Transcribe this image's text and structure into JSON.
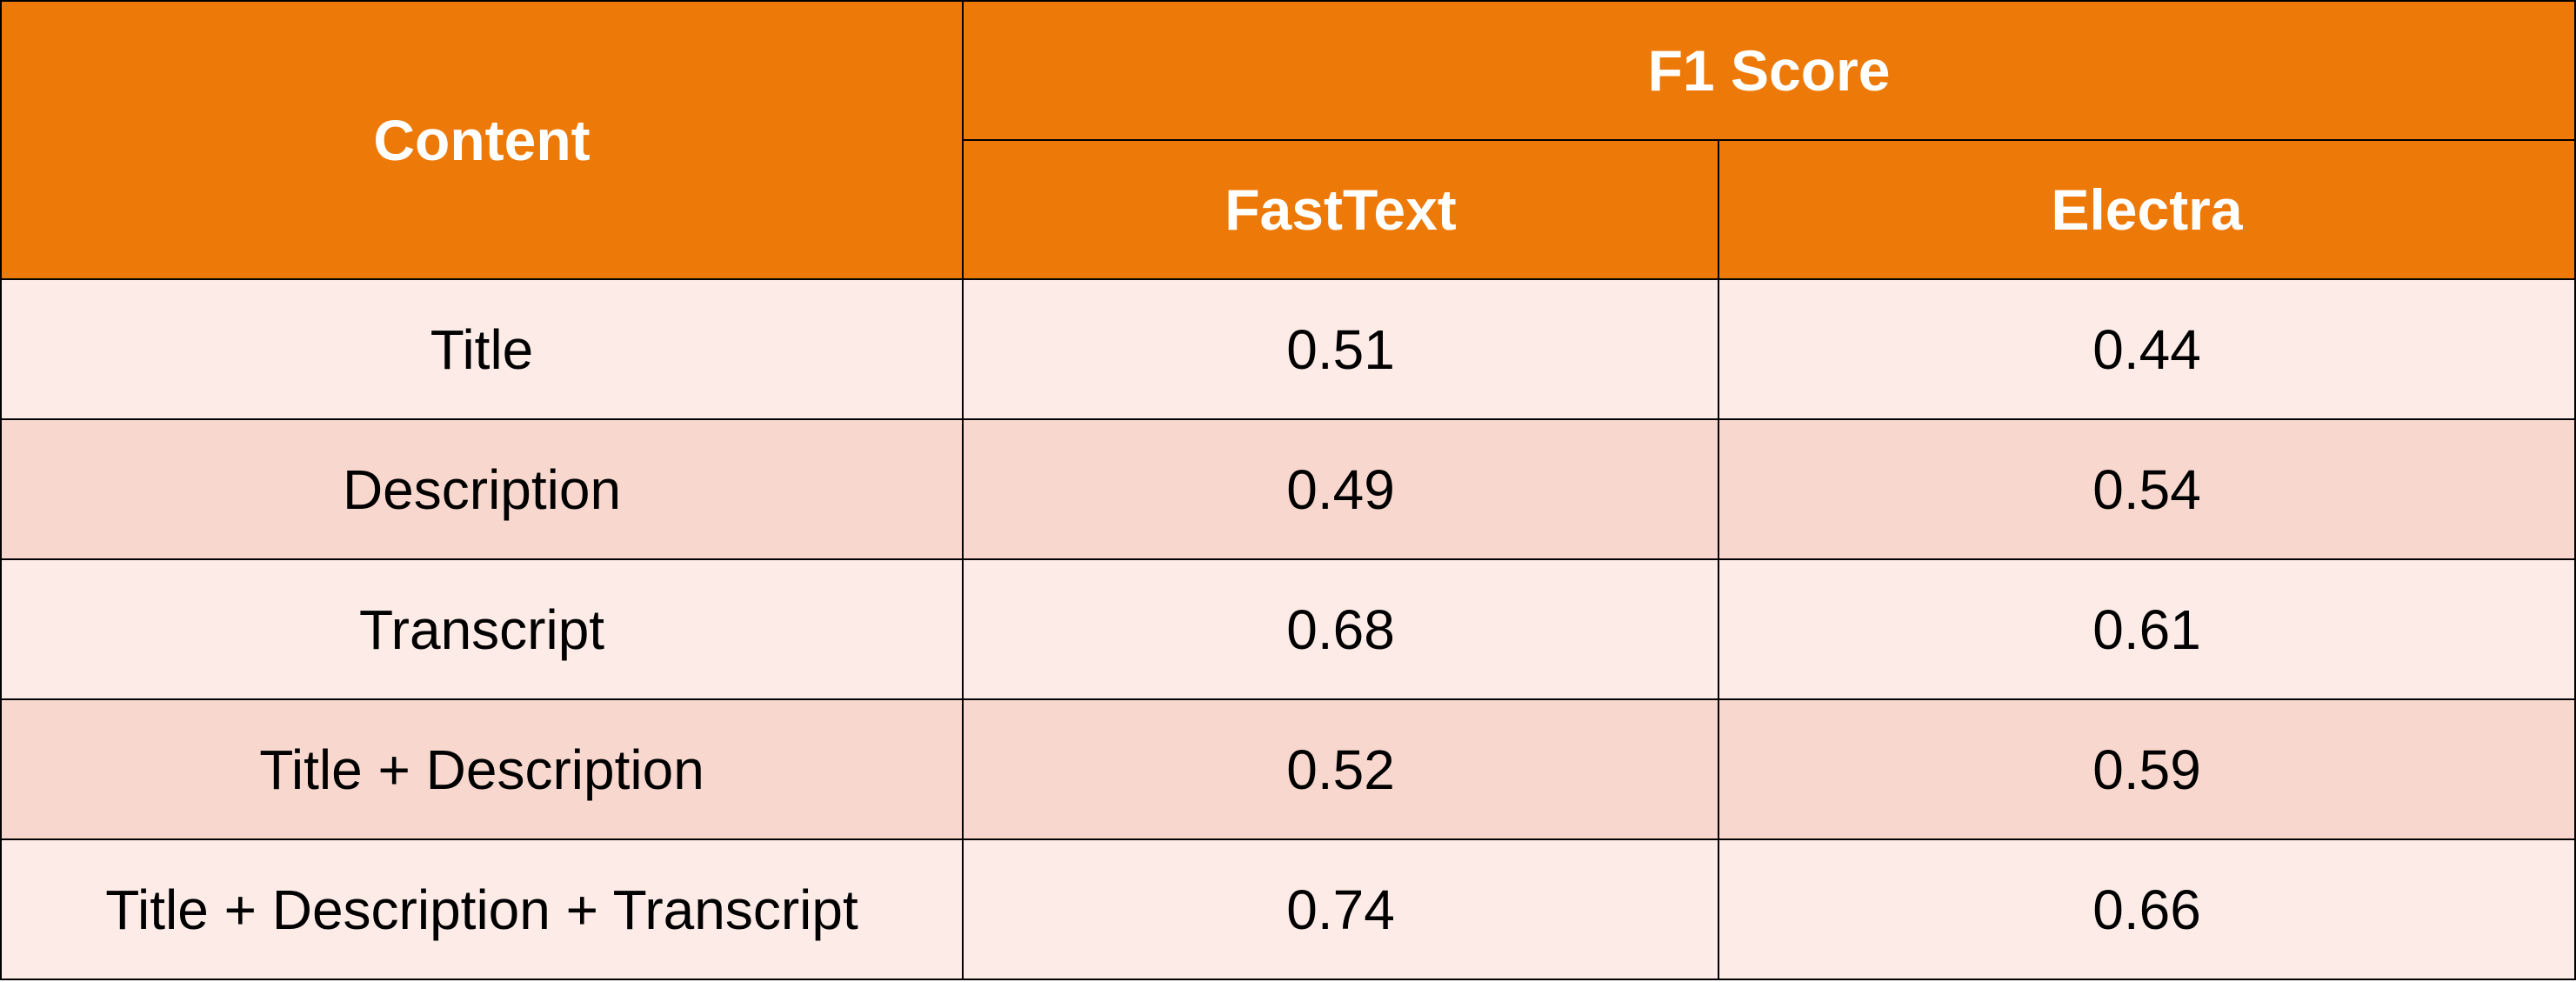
{
  "header": {
    "content_label": "Content",
    "f1_label": "F1 Score",
    "fasttext_label": "FastText",
    "electra_label": "Electra"
  },
  "rows": [
    {
      "content": "Title",
      "fasttext": "0.51",
      "electra": "0.44"
    },
    {
      "content": "Description",
      "fasttext": "0.49",
      "electra": "0.54"
    },
    {
      "content": "Transcript",
      "fasttext": "0.68",
      "electra": "0.61"
    },
    {
      "content": "Title + Description",
      "fasttext": "0.52",
      "electra": "0.59"
    },
    {
      "content": "Title + Description + Transcript",
      "fasttext": "0.74",
      "electra": "0.66"
    }
  ],
  "colors": {
    "header_bg": "#ed7a08",
    "row_light": "#fcebe7",
    "row_dark": "#f8d8ce"
  }
}
